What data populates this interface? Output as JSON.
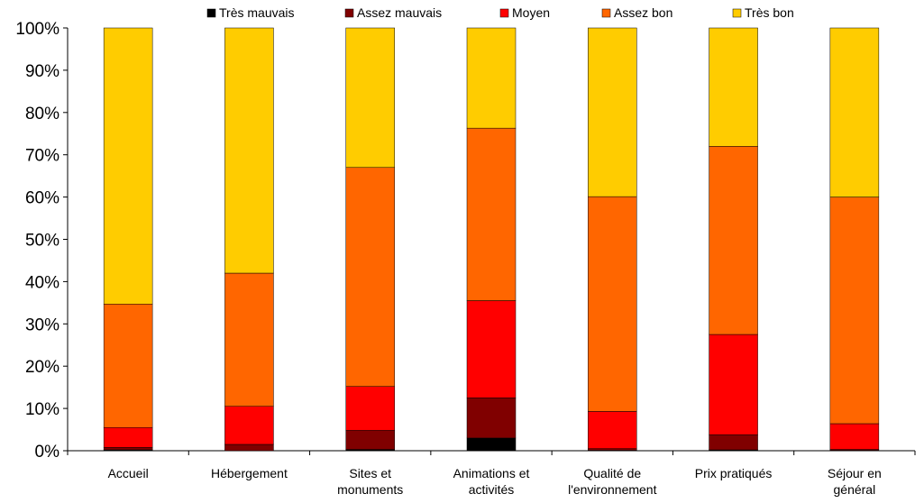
{
  "chart_data": {
    "type": "bar",
    "stacked": true,
    "normalized": true,
    "categories": [
      [
        "Accueil"
      ],
      [
        "Hébergement"
      ],
      [
        "Sites et",
        "monuments"
      ],
      [
        "Animations et",
        "activités"
      ],
      [
        "Qualité de",
        "l'environnement"
      ],
      [
        "Prix pratiqués"
      ],
      [
        "Séjour en",
        "général"
      ]
    ],
    "series": [
      {
        "name": "Très mauvais",
        "color": "#000000",
        "values": [
          0.2,
          0.0,
          0.3,
          3.0,
          0.1,
          0.2,
          0.1
        ]
      },
      {
        "name": "Assez mauvais",
        "color": "#800000",
        "values": [
          0.6,
          1.5,
          4.5,
          9.5,
          0.4,
          3.6,
          0.2
        ]
      },
      {
        "name": "Moyen",
        "color": "#FF0000",
        "values": [
          4.7,
          9.0,
          10.4,
          23.0,
          8.8,
          23.7,
          6.1
        ]
      },
      {
        "name": "Assez bon",
        "color": "#FF6600",
        "values": [
          29.2,
          31.5,
          51.8,
          40.8,
          50.8,
          44.5,
          53.6
        ]
      },
      {
        "name": "Très bon",
        "color": "#FFCC00",
        "values": [
          65.3,
          58.0,
          33.0,
          23.7,
          39.9,
          28.0,
          40.0
        ]
      }
    ],
    "ylim": [
      0,
      100
    ],
    "y_ticks": [
      "0%",
      "10%",
      "20%",
      "30%",
      "40%",
      "50%",
      "60%",
      "70%",
      "80%",
      "90%",
      "100%"
    ],
    "grid": false,
    "legend_position": "top",
    "xlabel": "",
    "ylabel": ""
  }
}
